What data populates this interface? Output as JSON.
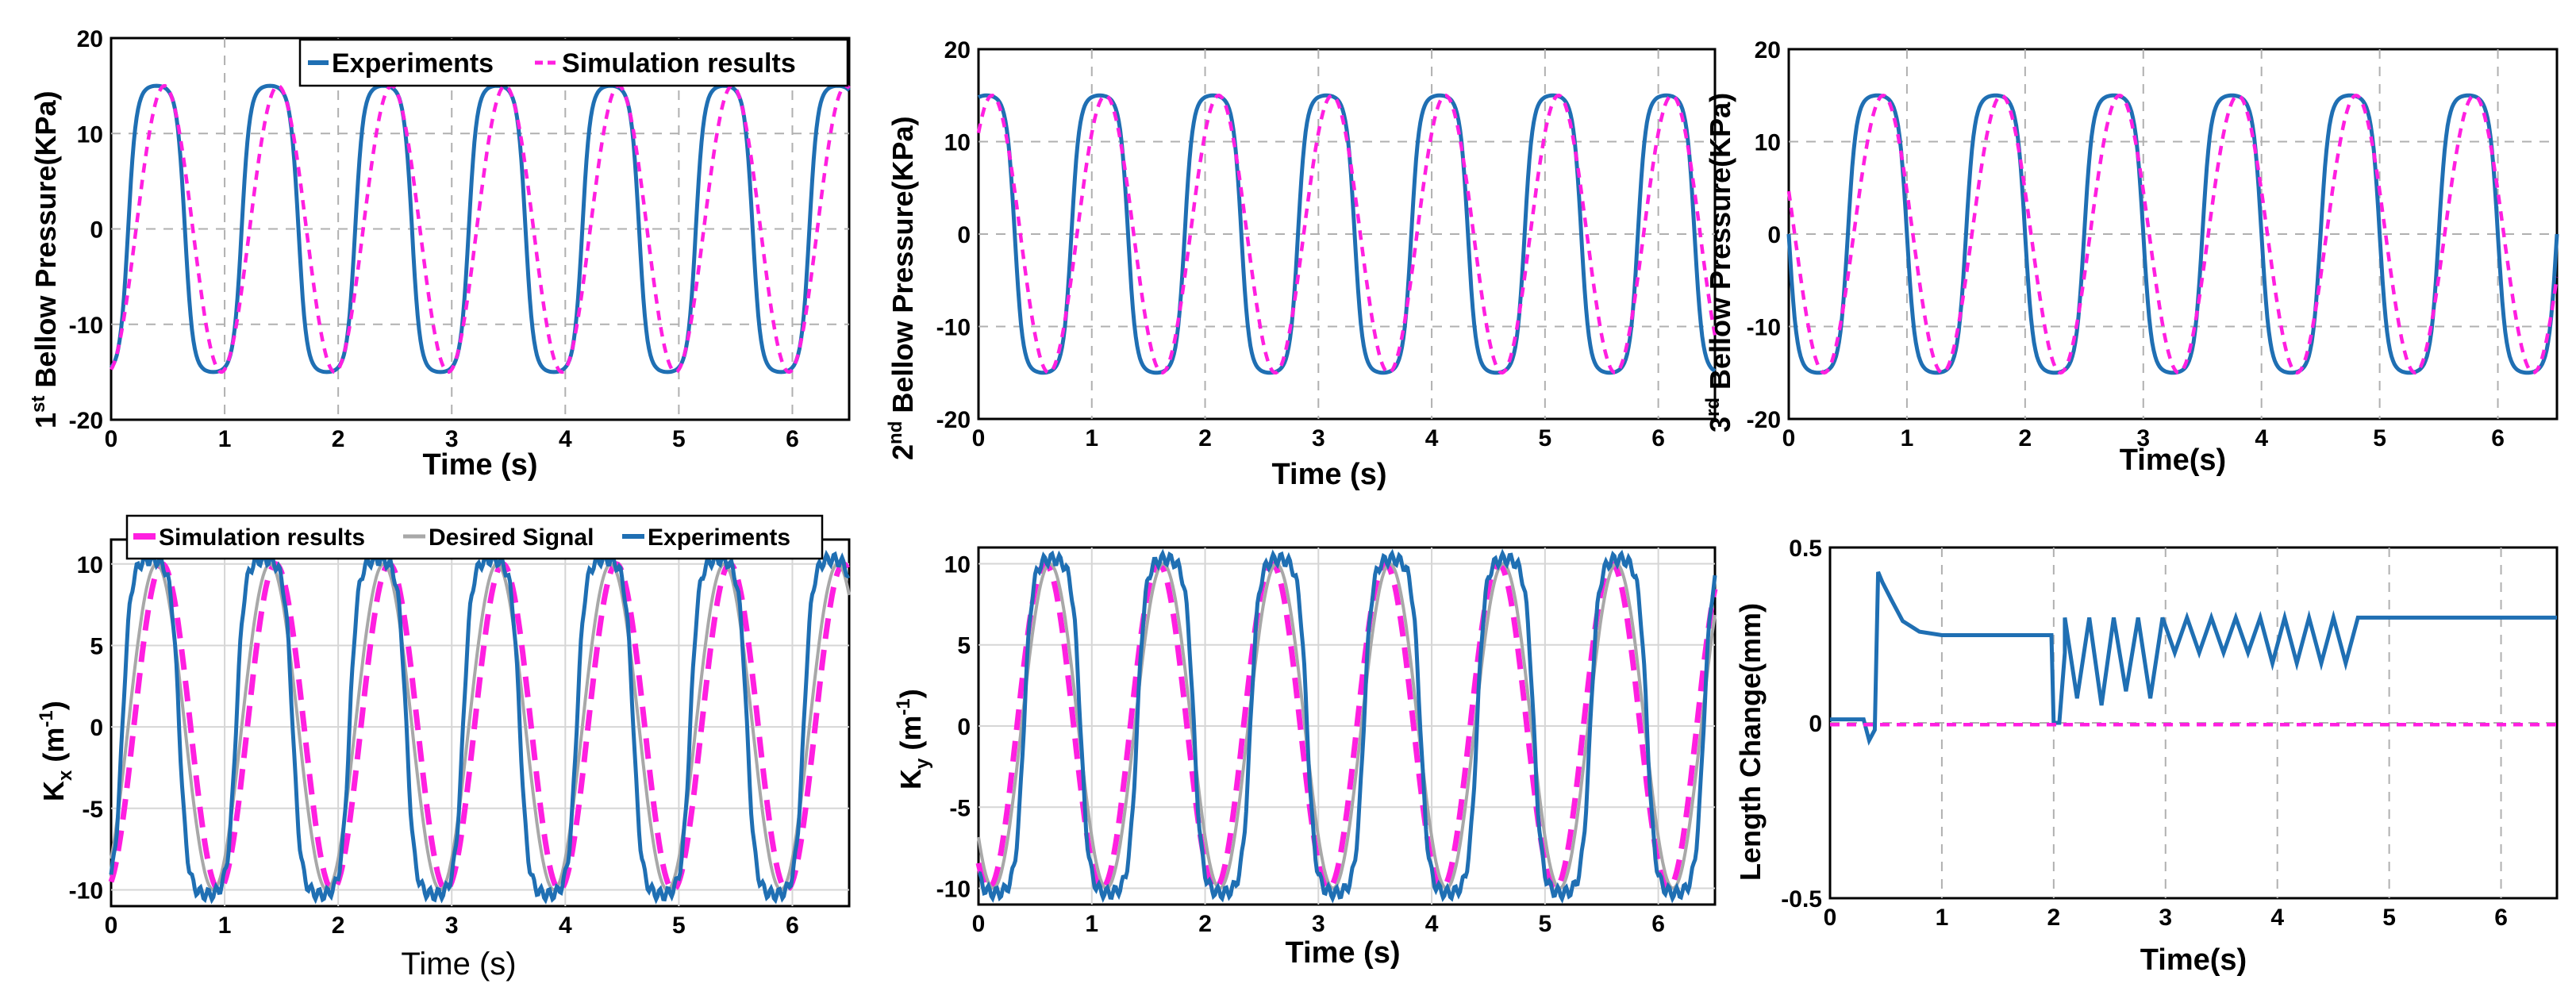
{
  "colors": {
    "experiments": "#1f6fb3",
    "simulation": "#ff1fe0",
    "desired": "#a8a8a8",
    "grid": "#b0b0b0"
  },
  "chart_data": [
    {
      "id": "p1",
      "type": "line",
      "ylabel_prefix": "1",
      "ylabel_sup": "st",
      "ylabel_main": " Bellow Pressure(KPa)",
      "xlabel": "Time (s)",
      "xlim": [
        0,
        6.5
      ],
      "ylim": [
        -20,
        20
      ],
      "xticks": [
        "0",
        "1",
        "2",
        "3",
        "4",
        "5",
        "6"
      ],
      "yticks": [
        "-20",
        "-10",
        "0",
        "10",
        "20"
      ],
      "grid": "dashed",
      "legend": "top-right",
      "legend_entries": [
        "Experiments",
        "Simulation results"
      ],
      "series": [
        {
          "name": "Experiments",
          "style": "solid",
          "amplitude": 15,
          "period": 1.0,
          "phase_s": 0.15
        },
        {
          "name": "Simulation results",
          "style": "dashed",
          "amplitude": 15,
          "period": 1.0,
          "phase_s": 0.22
        }
      ]
    },
    {
      "id": "p2",
      "type": "line",
      "ylabel_prefix": "2",
      "ylabel_sup": "nd",
      "ylabel_main": " Bellow Pressure(KPa)",
      "xlabel": "Time (s)",
      "xlim": [
        0,
        6.5
      ],
      "ylim": [
        -20,
        20
      ],
      "xticks": [
        "0",
        "1",
        "2",
        "3",
        "4",
        "5",
        "6"
      ],
      "yticks": [
        "-20",
        "-10",
        "0",
        "10",
        "20"
      ],
      "grid": "dashed",
      "legend": "none",
      "series": [
        {
          "name": "Experiments",
          "style": "solid",
          "amplitude": 15,
          "period": 1.0,
          "phase_s": 0.82
        },
        {
          "name": "Simulation results",
          "style": "dashed",
          "amplitude": 15,
          "period": 1.0,
          "phase_s": 0.87
        }
      ]
    },
    {
      "id": "p3",
      "type": "line",
      "ylabel_prefix": "3",
      "ylabel_sup": "rd",
      "ylabel_main": " Bellow Pressure(KPa)",
      "xlabel": "Time(s)",
      "xlim": [
        0,
        6.5
      ],
      "ylim": [
        -20,
        20
      ],
      "xticks": [
        "0",
        "1",
        "2",
        "3",
        "4",
        "5",
        "6"
      ],
      "yticks": [
        "-20",
        "-10",
        "0",
        "10",
        "20"
      ],
      "grid": "dashed",
      "legend": "none",
      "series": [
        {
          "name": "Experiments",
          "style": "solid",
          "amplitude": 15,
          "period": 1.0,
          "phase_s": 0.5
        },
        {
          "name": "Simulation results",
          "style": "dashed",
          "amplitude": 15,
          "period": 1.0,
          "phase_s": 0.55
        }
      ]
    },
    {
      "id": "p4",
      "type": "line",
      "ylabel_main": "K",
      "ylabel_sub": "x",
      "ylabel_unit": "(m",
      "ylabel_unit_sup": "-1",
      "ylabel_close": ")",
      "xlabel": "Time (s)",
      "xlim": [
        0,
        6.5
      ],
      "ylim": [
        -11,
        11.5
      ],
      "xticks": [
        "0",
        "1",
        "2",
        "3",
        "4",
        "5",
        "6"
      ],
      "yticks": [
        "-10",
        "-5",
        "0",
        "5",
        "10"
      ],
      "grid": "solid",
      "legend": "top",
      "legend_entries": [
        "Simulation results",
        "Desired Signal",
        "Experiments"
      ],
      "series": [
        {
          "name": "Simulation results",
          "style": "dashed",
          "amplitude": 10,
          "period": 1.0,
          "phase_s": 0.2
        },
        {
          "name": "Desired Signal",
          "style": "solid",
          "amplitude": 10,
          "period": 1.0,
          "phase_s": 0.15
        },
        {
          "name": "Experiments",
          "style": "solid",
          "amplitude": 10.5,
          "period": 1.0,
          "phase_s": 0.1
        }
      ]
    },
    {
      "id": "p5",
      "type": "line",
      "ylabel_main": "K",
      "ylabel_sub": "y",
      "ylabel_unit": " (m",
      "ylabel_unit_sup": "-1",
      "ylabel_close": ")",
      "xlabel": "Time (s)",
      "xlim": [
        0,
        6.5
      ],
      "ylim": [
        -11,
        11
      ],
      "xticks": [
        "0",
        "1",
        "2",
        "3",
        "4",
        "5",
        "6"
      ],
      "yticks": [
        "-10",
        "-5",
        "0",
        "5",
        "10"
      ],
      "grid": "solid",
      "legend": "none",
      "series": [
        {
          "name": "Simulation results",
          "style": "dashed",
          "amplitude": 10,
          "period": 1.0,
          "phase_s": 0.34
        },
        {
          "name": "Desired Signal",
          "style": "solid",
          "amplitude": 10,
          "period": 1.0,
          "phase_s": 0.38
        },
        {
          "name": "Experiments",
          "style": "solid",
          "amplitude": 10.5,
          "period": 1.0,
          "phase_s": 0.4
        }
      ]
    },
    {
      "id": "p6",
      "type": "line",
      "ylabel_main": "Length Change(mm)",
      "xlabel": "Time(s)",
      "xlim": [
        0,
        6.5
      ],
      "ylim": [
        -0.5,
        0.5
      ],
      "xticks": [
        "0",
        "1",
        "2",
        "3",
        "4",
        "5",
        "6"
      ],
      "yticks": [
        "-0.5",
        "0",
        "0.5"
      ],
      "grid": "dashed",
      "legend": "none",
      "series": [
        {
          "name": "Experiments",
          "style": "solid",
          "points": [
            [
              0,
              0.01
            ],
            [
              0.3,
              0.01
            ],
            [
              0.35,
              -0.05
            ],
            [
              0.4,
              -0.02
            ],
            [
              0.43,
              0.43
            ],
            [
              0.47,
              0.4
            ],
            [
              0.55,
              0.35
            ],
            [
              0.65,
              0.29
            ],
            [
              0.8,
              0.26
            ],
            [
              1.0,
              0.25
            ],
            [
              1.5,
              0.25
            ],
            [
              1.98,
              0.25
            ],
            [
              2.0,
              0.0
            ],
            [
              2.05,
              0.0
            ],
            [
              2.1,
              0.2
            ],
            [
              4.72,
              0.3
            ],
            [
              6.5,
              0.3
            ]
          ]
        },
        {
          "name": "Simulation results",
          "style": "dashed",
          "points": [
            [
              0,
              -0.005
            ],
            [
              6.5,
              -0.005
            ]
          ]
        }
      ]
    }
  ]
}
